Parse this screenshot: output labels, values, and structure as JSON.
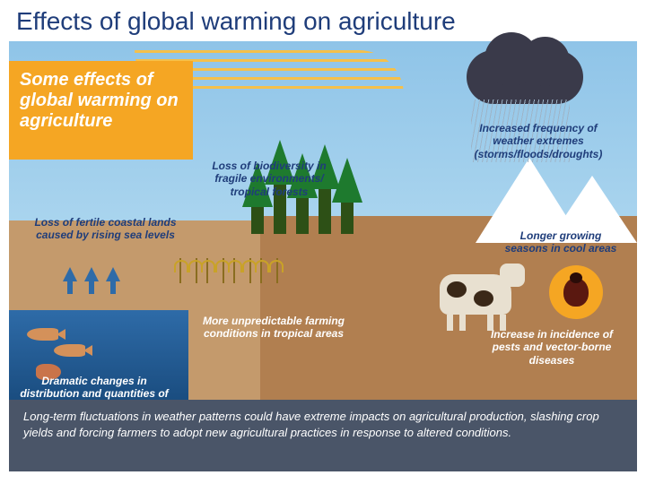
{
  "slide": {
    "title": "Effects of global warming on agriculture"
  },
  "infographic": {
    "type": "infographic",
    "title_box": "Some effects of global warming on agriculture",
    "labels": {
      "biodiversity": "Loss of biodiversity in fragile environments/ tropical forests",
      "coastal": "Loss of fertile coastal lands caused by rising sea levels",
      "weather": "Increased frequency of weather extremes (storms/floods/droughts)",
      "seasons": "Longer growing seasons in cool areas",
      "tropical": "More unpredictable farming conditions in tropical areas",
      "pests": "Increase in incidence of pests and vector-borne diseases",
      "dramatic": "Dramatic changes in distribution and quantities of fish and sea foods"
    },
    "footer": "Long-term fluctuations in weather patterns could have extreme impacts on agricultural production, slashing crop yields and forcing farmers to adopt new agricultural practices in response to altered conditions.",
    "colors": {
      "title_text": "#1f3d7a",
      "title_box_bg": "#f5a623",
      "sky": "#8fc4e8",
      "land_light": "#c49a6c",
      "land_dark": "#b17f50",
      "ocean": "#2e6ba8",
      "mountain": "#ffffff",
      "cloud": "#3a3a4a",
      "tree": "#1e7a2e",
      "footer_bg": "#4a5568",
      "label_dark": "#1f3d7a",
      "label_light": "#ffffff",
      "cow": "#e8e0d0",
      "bug_circle": "#f5a623",
      "bug": "#5a1810"
    },
    "elements": [
      {
        "name": "waves",
        "role": "atmosphere-heat"
      },
      {
        "name": "storm-cloud",
        "role": "weather-extremes"
      },
      {
        "name": "mountains",
        "role": "cool-areas"
      },
      {
        "name": "trees",
        "role": "tropical-forests",
        "count": 5
      },
      {
        "name": "crops",
        "role": "farming",
        "count": 4
      },
      {
        "name": "rising-arrows",
        "role": "sea-level-rise",
        "count": 3
      },
      {
        "name": "fish",
        "role": "sea-foods",
        "count": 2
      },
      {
        "name": "shrimp",
        "role": "sea-foods"
      },
      {
        "name": "cow",
        "role": "livestock"
      },
      {
        "name": "beetle",
        "role": "pests"
      }
    ]
  }
}
